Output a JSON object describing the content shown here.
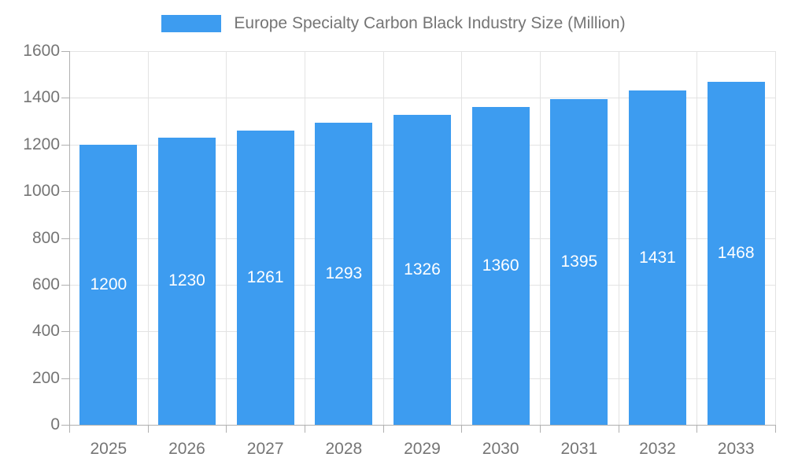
{
  "legend": {
    "label": "Europe Specialty Carbon Black Industry Size (Million)"
  },
  "chart_data": {
    "type": "bar",
    "title": "Europe Specialty Carbon Black Industry Size (Million)",
    "categories": [
      "2025",
      "2026",
      "2027",
      "2028",
      "2029",
      "2030",
      "2031",
      "2032",
      "2033"
    ],
    "values": [
      1200,
      1230,
      1261,
      1293,
      1326,
      1360,
      1395,
      1431,
      1468
    ],
    "xlabel": "",
    "ylabel": "",
    "ylim": [
      0,
      1600
    ],
    "yticks": [
      0,
      200,
      400,
      600,
      800,
      1000,
      1200,
      1400,
      1600
    ],
    "grid": true,
    "legend_position": "top",
    "value_labels": "inside-center",
    "bar_color": "#3D9CF0",
    "value_label_color": "#FFFFFF",
    "axis_label_color": "#757575",
    "grid_color": "#E3E3E3",
    "axis_line_color": "#B0B0B0"
  }
}
